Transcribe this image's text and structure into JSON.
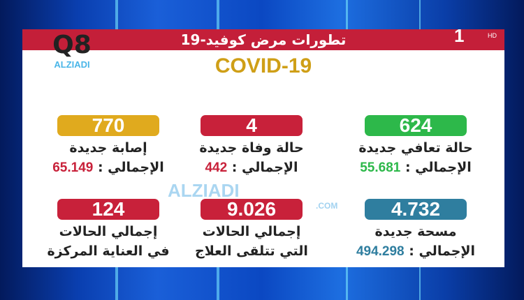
{
  "header": {
    "title": "تطورات مرض كوفيد-19",
    "subtitle": "COVID-19"
  },
  "logo": {
    "mark": "Q8",
    "text": "ALZIADI"
  },
  "channel": {
    "number": "1",
    "hd": "HD"
  },
  "watermark": {
    "text": "ALZIADI",
    "domain": ".COM"
  },
  "colors": {
    "yellow": "#e0aa1e",
    "red": "#c8213a",
    "green": "#2db84a",
    "teal": "#2f7e9f"
  },
  "cards": [
    {
      "value": "770",
      "label": "إصابة جديدة",
      "total_label": "الإجمالي :",
      "total": "65.149",
      "color": "#e0aa1e",
      "total_color": "#c8213a"
    },
    {
      "value": "4",
      "label": "حالة وفاة جديدة",
      "total_label": "الإجمالي :",
      "total": "442",
      "color": "#c8213a",
      "total_color": "#c8213a"
    },
    {
      "value": "624",
      "label": "حالة تعافي جديدة",
      "total_label": "الإجمالي :",
      "total": "55.681",
      "color": "#2db84a",
      "total_color": "#2db84a"
    },
    {
      "value": "124",
      "label": "إجمالي الحالات",
      "label2": "في العناية المركزة",
      "color": "#c8213a"
    },
    {
      "value": "9.026",
      "label": "إجمالي الحالات",
      "label2": "التي تتلقى العلاج",
      "color": "#c8213a"
    },
    {
      "value": "4.732",
      "label": "مسحة جديدة",
      "total_label": "الإجمالي :",
      "total": "494.298",
      "color": "#2f7e9f",
      "total_color": "#2f7e9f"
    }
  ]
}
